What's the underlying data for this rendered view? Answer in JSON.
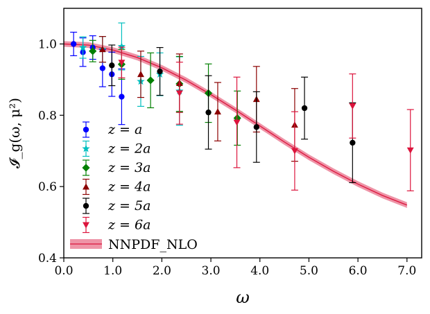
{
  "chart_data": {
    "type": "scatter",
    "xlabel": "ω",
    "ylabel": "𝓘_g(ω, μ²)",
    "xlim": [
      0.0,
      7.3
    ],
    "ylim": [
      0.4,
      1.1
    ],
    "xticks": [
      "0.0",
      "1.0",
      "2.0",
      "3.0",
      "4.0",
      "5.0",
      "6.0",
      "7.0"
    ],
    "yticks": [
      "0.4",
      "0.6",
      "0.8",
      "1.0"
    ],
    "grid": false,
    "legend_position": "lower-left",
    "series": [
      {
        "name": "z = a",
        "color": "#0000ff",
        "marker": "circle",
        "points": [
          {
            "x": 0.2,
            "y": 1.0,
            "err": 0.033
          },
          {
            "x": 0.39,
            "y": 0.977,
            "err": 0.04
          },
          {
            "x": 0.59,
            "y": 0.99,
            "err": 0.033
          },
          {
            "x": 0.79,
            "y": 0.932,
            "err": 0.052
          },
          {
            "x": 0.98,
            "y": 0.915,
            "err": 0.062
          },
          {
            "x": 1.18,
            "y": 0.852,
            "err": 0.078
          }
        ]
      },
      {
        "name": "z = 2a",
        "color": "#00bfbf",
        "marker": "star",
        "points": [
          {
            "x": 0.39,
            "y": 0.99,
            "err": 0.03
          },
          {
            "x": 0.79,
            "y": 0.985,
            "err": 0.036
          },
          {
            "x": 1.18,
            "y": 0.993,
            "err": 0.066
          },
          {
            "x": 1.57,
            "y": 0.895,
            "err": 0.07
          },
          {
            "x": 1.96,
            "y": 0.915,
            "err": 0.06
          },
          {
            "x": 2.36,
            "y": 0.868,
            "err": 0.096
          }
        ]
      },
      {
        "name": "z = 3a",
        "color": "#008000",
        "marker": "diamond",
        "points": [
          {
            "x": 0.59,
            "y": 0.98,
            "err": 0.03
          },
          {
            "x": 1.18,
            "y": 0.943,
            "err": 0.042
          },
          {
            "x": 1.77,
            "y": 0.898,
            "err": 0.077
          },
          {
            "x": 2.36,
            "y": 0.888,
            "err": 0.077
          },
          {
            "x": 2.95,
            "y": 0.862,
            "err": 0.082
          },
          {
            "x": 3.54,
            "y": 0.792,
            "err": 0.076
          }
        ]
      },
      {
        "name": "z = 4a",
        "color": "#8b0000",
        "marker": "triangle-up",
        "points": [
          {
            "x": 0.79,
            "y": 0.985,
            "err": 0.036
          },
          {
            "x": 1.57,
            "y": 0.915,
            "err": 0.065
          },
          {
            "x": 2.36,
            "y": 0.89,
            "err": 0.082
          },
          {
            "x": 3.14,
            "y": 0.81,
            "err": 0.082
          },
          {
            "x": 3.93,
            "y": 0.845,
            "err": 0.092
          },
          {
            "x": 4.71,
            "y": 0.773,
            "err": 0.102
          }
        ]
      },
      {
        "name": "z = 5a",
        "color": "#000000",
        "marker": "circle",
        "points": [
          {
            "x": 0.98,
            "y": 0.94,
            "err": 0.057
          },
          {
            "x": 1.96,
            "y": 0.923,
            "err": 0.067
          },
          {
            "x": 2.95,
            "y": 0.808,
            "err": 0.103
          },
          {
            "x": 3.93,
            "y": 0.767,
            "err": 0.099
          },
          {
            "x": 4.91,
            "y": 0.82,
            "err": 0.087
          },
          {
            "x": 5.89,
            "y": 0.723,
            "err": 0.112
          }
        ]
      },
      {
        "name": "z = 6a",
        "color": "#dc143c",
        "marker": "triangle-down",
        "points": [
          {
            "x": 1.18,
            "y": 0.948,
            "err": 0.043
          },
          {
            "x": 2.36,
            "y": 0.862,
            "err": 0.087
          },
          {
            "x": 3.53,
            "y": 0.78,
            "err": 0.127
          },
          {
            "x": 4.71,
            "y": 0.7,
            "err": 0.11
          },
          {
            "x": 5.89,
            "y": 0.826,
            "err": 0.09
          },
          {
            "x": 7.07,
            "y": 0.702,
            "err": 0.114
          }
        ]
      }
    ],
    "band": {
      "name": "NNPDF_NLO",
      "color": "#dc143c",
      "fill": "#e8708a",
      "x": [
        0,
        0.5,
        1.0,
        1.5,
        2.0,
        2.5,
        3.0,
        3.5,
        4.0,
        4.5,
        5.0,
        5.5,
        6.0,
        6.5,
        7.0
      ],
      "y": [
        1.0,
        0.997,
        0.983,
        0.962,
        0.933,
        0.898,
        0.858,
        0.815,
        0.77,
        0.725,
        0.682,
        0.643,
        0.607,
        0.575,
        0.548
      ],
      "halfwidth": 0.008
    }
  },
  "legend": {
    "entries": [
      "z = a",
      "z = 2a",
      "z = 3a",
      "z = 4a",
      "z = 5a",
      "z = 6a"
    ],
    "band_label": "NNPDF_NLO"
  }
}
